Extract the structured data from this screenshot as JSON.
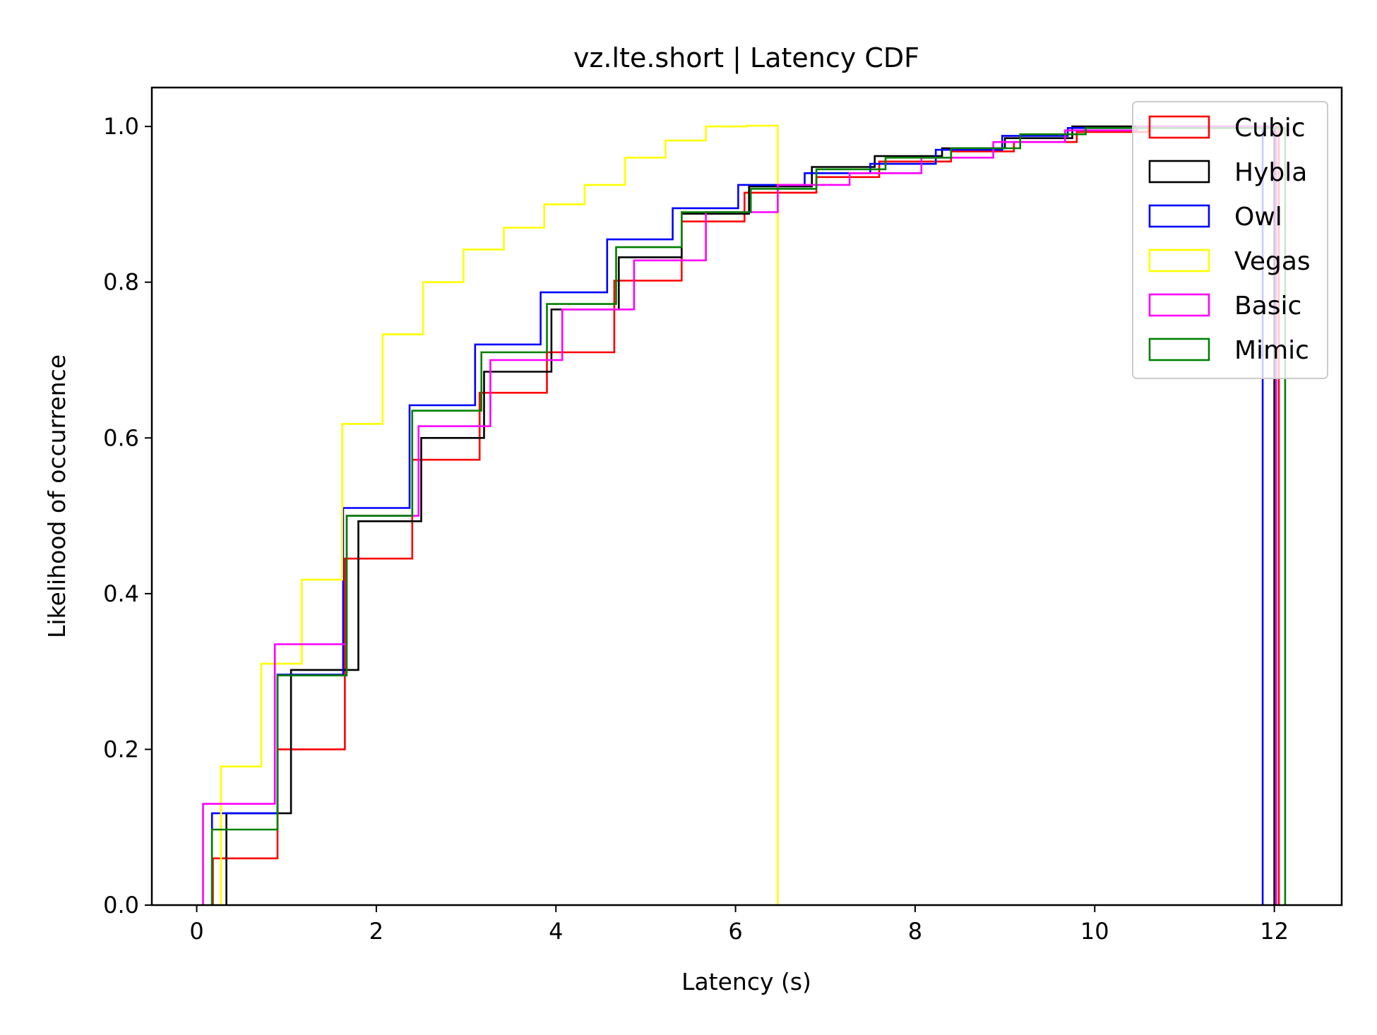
{
  "chart_data": {
    "type": "line",
    "title": "vz.lte.short | Latency CDF",
    "xlabel": "Latency (s)",
    "ylabel": "Likelihood of occurrence",
    "xlim": [
      -0.5,
      12.75
    ],
    "ylim": [
      0,
      1.05
    ],
    "xticks": [
      0,
      2,
      4,
      6,
      8,
      10,
      12
    ],
    "yticks": [
      0.0,
      0.2,
      0.4,
      0.6,
      0.8,
      1.0
    ],
    "xtick_labels": [
      "0",
      "2",
      "4",
      "6",
      "8",
      "10",
      "12"
    ],
    "ytick_labels": [
      "0.0",
      "0.2",
      "0.4",
      "0.6",
      "0.8",
      "1.0"
    ],
    "grid": false,
    "legend_position": "top-right",
    "series": [
      {
        "name": "Cubic",
        "color": "#ff0000",
        "x": [
          0.18,
          0.9,
          1.65,
          2.4,
          3.15,
          3.9,
          4.65,
          5.4,
          6.1,
          6.9,
          7.6,
          8.4,
          9.1,
          9.8,
          10.6,
          12.05
        ],
        "y": [
          0.06,
          0.2,
          0.445,
          0.572,
          0.658,
          0.71,
          0.802,
          0.878,
          0.915,
          0.935,
          0.955,
          0.968,
          0.98,
          0.993,
          1.0,
          0.0
        ]
      },
      {
        "name": "Hybla",
        "color": "#000000",
        "x": [
          0.33,
          1.05,
          1.8,
          2.5,
          3.2,
          3.95,
          4.7,
          5.4,
          6.15,
          6.85,
          7.55,
          8.3,
          9.0,
          9.75,
          12.0
        ],
        "y": [
          0.118,
          0.302,
          0.493,
          0.6,
          0.685,
          0.765,
          0.832,
          0.888,
          0.923,
          0.948,
          0.962,
          0.972,
          0.985,
          1.0,
          0.0
        ]
      },
      {
        "name": "Owl",
        "color": "#0000ff",
        "x": [
          0.17,
          0.9,
          1.63,
          2.37,
          3.1,
          3.83,
          4.57,
          5.3,
          6.03,
          6.77,
          7.5,
          8.23,
          8.97,
          9.7,
          11.87
        ],
        "y": [
          0.118,
          0.296,
          0.51,
          0.642,
          0.72,
          0.787,
          0.855,
          0.895,
          0.925,
          0.94,
          0.952,
          0.97,
          0.988,
          0.998,
          0.0
        ]
      },
      {
        "name": "Vegas",
        "color": "#ffff00",
        "x": [
          0.27,
          0.72,
          1.17,
          1.62,
          2.07,
          2.52,
          2.97,
          3.42,
          3.87,
          4.32,
          4.77,
          5.22,
          5.67,
          6.12,
          6.47
        ],
        "y": [
          0.178,
          0.31,
          0.418,
          0.618,
          0.733,
          0.8,
          0.842,
          0.87,
          0.9,
          0.925,
          0.96,
          0.982,
          1.0,
          1.001,
          0.0
        ]
      },
      {
        "name": "Basic",
        "color": "#ff00ff",
        "x": [
          0.07,
          0.87,
          1.67,
          2.47,
          3.27,
          4.07,
          4.87,
          5.67,
          6.47,
          7.27,
          8.07,
          8.87,
          9.67,
          10.47,
          12.02
        ],
        "y": [
          0.13,
          0.335,
          0.5,
          0.615,
          0.7,
          0.765,
          0.828,
          0.89,
          0.925,
          0.94,
          0.96,
          0.98,
          0.995,
          1.0,
          0.0
        ]
      },
      {
        "name": "Mimic",
        "color": "#008000",
        "x": [
          0.17,
          0.9,
          1.67,
          2.4,
          3.17,
          3.9,
          4.67,
          5.4,
          6.17,
          6.9,
          7.67,
          8.4,
          9.17,
          9.9,
          12.12
        ],
        "y": [
          0.097,
          0.295,
          0.5,
          0.635,
          0.71,
          0.772,
          0.845,
          0.89,
          0.92,
          0.945,
          0.96,
          0.972,
          0.99,
          0.998,
          0.0
        ]
      }
    ]
  }
}
